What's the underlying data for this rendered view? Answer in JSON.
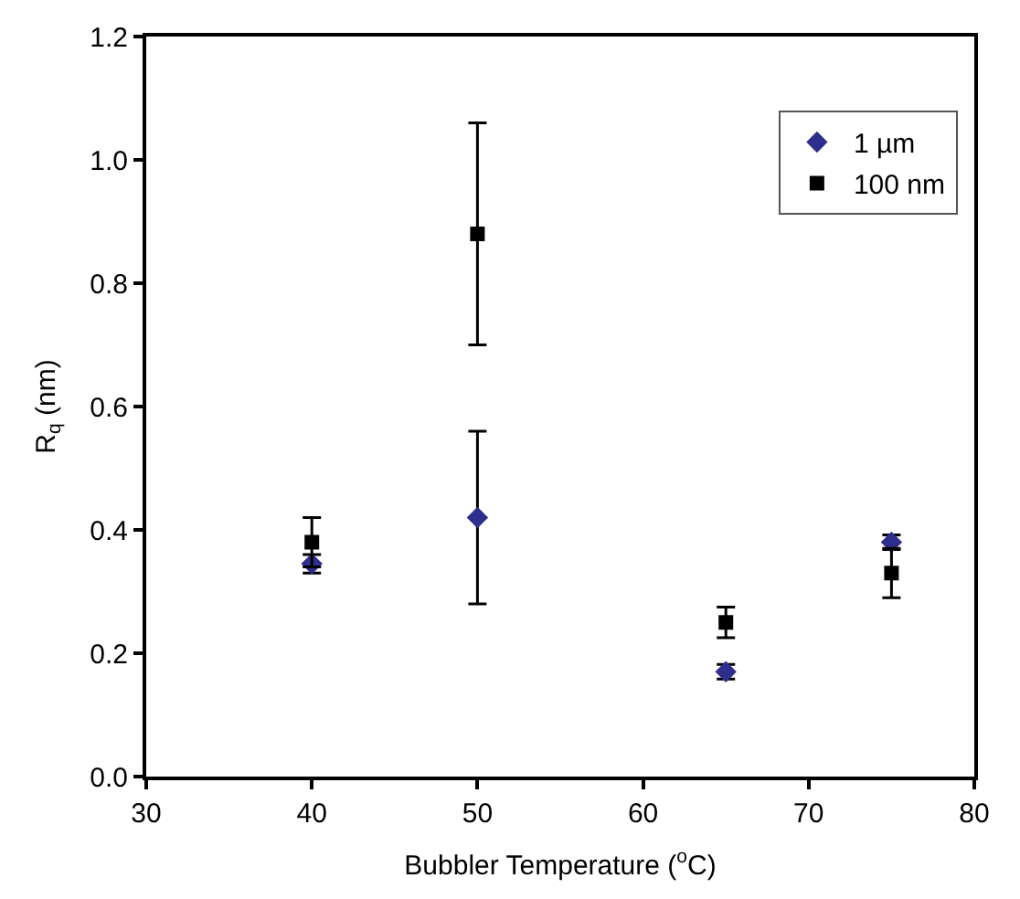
{
  "chart_data": {
    "type": "scatter",
    "xlabel": "Bubbler Temperature ($^{o}$C)",
    "ylabel": "R$_{q}$ (nm)",
    "x": [
      40,
      50,
      65,
      75
    ],
    "series": [
      {
        "name": "1 µm",
        "color": "#2e2e8c",
        "marker": "diamond",
        "values": [
          0.345,
          0.42,
          0.17,
          0.38
        ],
        "errors": [
          0.015,
          0.14,
          0.012,
          0.012
        ]
      },
      {
        "name": "100 nm",
        "color": "#000000",
        "marker": "square",
        "values": [
          0.38,
          0.88,
          0.25,
          0.33
        ],
        "errors": [
          0.04,
          0.18,
          0.025,
          0.04
        ]
      }
    ],
    "xlim": [
      30,
      80
    ],
    "xticks": [
      30,
      40,
      50,
      60,
      70,
      80
    ],
    "ylim": [
      0,
      1.2
    ],
    "yticks": [
      {
        "value": 0,
        "label": "0.0"
      },
      {
        "value": 0.2,
        "label": "0.2"
      },
      {
        "value": 0.4,
        "label": "0.4"
      },
      {
        "value": 0.6,
        "label": "0.6"
      },
      {
        "value": 0.8,
        "label": "0.8"
      },
      {
        "value": 1.0,
        "label": "1.0"
      },
      {
        "value": 1.2,
        "label": "1.2"
      }
    ],
    "legend": "top right"
  }
}
